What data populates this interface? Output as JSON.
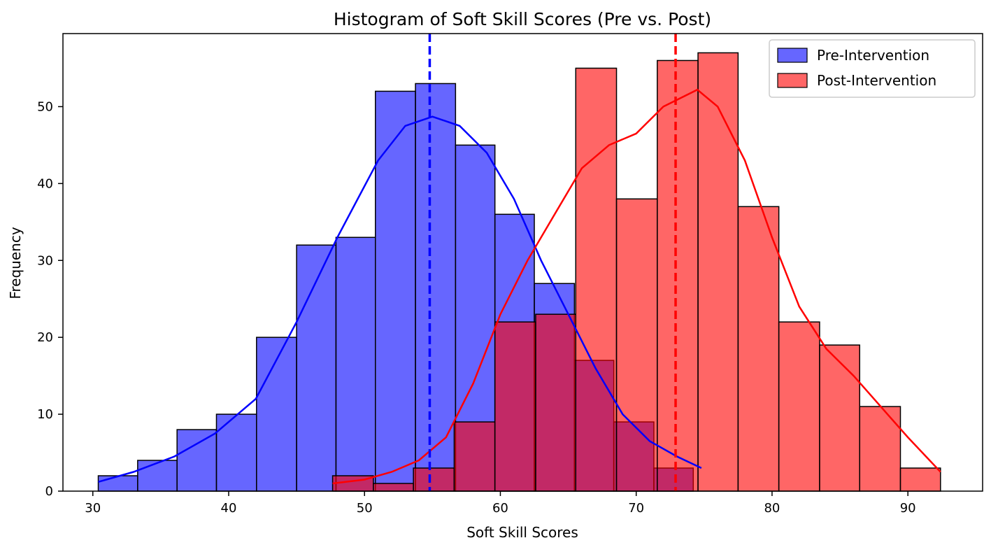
{
  "chart_data": {
    "type": "histogram",
    "title": "Histogram of Soft Skill Scores (Pre vs. Post)",
    "xlabel": "Soft Skill Scores",
    "ylabel": "Frequency",
    "xlim": [
      27.8,
      95.5
    ],
    "ylim": [
      0,
      59.5
    ],
    "xticks": [
      30,
      40,
      50,
      60,
      70,
      80,
      90
    ],
    "yticks": [
      0,
      10,
      20,
      30,
      40,
      50
    ],
    "grid": false,
    "legend_position": "top-right",
    "series": [
      {
        "name": "Pre-Intervention",
        "color": "#0000ff",
        "fill": "#6666ff",
        "bin_edges": [
          30.4,
          33.3,
          36.2,
          39.1,
          42.05,
          45.0,
          47.9,
          50.8,
          53.75,
          56.7,
          59.6,
          62.5,
          65.45,
          68.35,
          71.3,
          74.2
        ],
        "counts": [
          2,
          4,
          8,
          10,
          20,
          32,
          33,
          52,
          53,
          45,
          36,
          27,
          17,
          9,
          3
        ],
        "mean": 54.8,
        "kde": [
          [
            30.4,
            1.2
          ],
          [
            33,
            2.5
          ],
          [
            36,
            4.5
          ],
          [
            39,
            7.5
          ],
          [
            42,
            12
          ],
          [
            45,
            22
          ],
          [
            48,
            33
          ],
          [
            51,
            43
          ],
          [
            53,
            47.5
          ],
          [
            55,
            48.7
          ],
          [
            57,
            47.5
          ],
          [
            59,
            44
          ],
          [
            61,
            38
          ],
          [
            63,
            30
          ],
          [
            65,
            23
          ],
          [
            67,
            16
          ],
          [
            69,
            10
          ],
          [
            71,
            6.5
          ],
          [
            73,
            4.5
          ],
          [
            74.8,
            3
          ]
        ]
      },
      {
        "name": "Post-Intervention",
        "color": "#ff0000",
        "fill": "#ff6666",
        "bin_edges": [
          47.65,
          50.65,
          53.6,
          56.6,
          59.6,
          62.6,
          65.55,
          68.55,
          71.55,
          74.55,
          77.5,
          80.5,
          83.5,
          86.45,
          89.45,
          92.4
        ],
        "counts": [
          2,
          1,
          3,
          9,
          22,
          23,
          55,
          38,
          56,
          57,
          37,
          22,
          19,
          11,
          3
        ],
        "mean": 72.9,
        "kde": [
          [
            47.65,
            1
          ],
          [
            50,
            1.5
          ],
          [
            52,
            2.5
          ],
          [
            54,
            4
          ],
          [
            56,
            7
          ],
          [
            58,
            14
          ],
          [
            60,
            23
          ],
          [
            62,
            30
          ],
          [
            64,
            36
          ],
          [
            66,
            42
          ],
          [
            68,
            45
          ],
          [
            70,
            46.5
          ],
          [
            72,
            50
          ],
          [
            74.5,
            52.2
          ],
          [
            76,
            50
          ],
          [
            78,
            43
          ],
          [
            80,
            33
          ],
          [
            82,
            24
          ],
          [
            84,
            18.5
          ],
          [
            86,
            15
          ],
          [
            88,
            11
          ],
          [
            90,
            7
          ],
          [
            92.4,
            2.5
          ]
        ]
      }
    ]
  }
}
